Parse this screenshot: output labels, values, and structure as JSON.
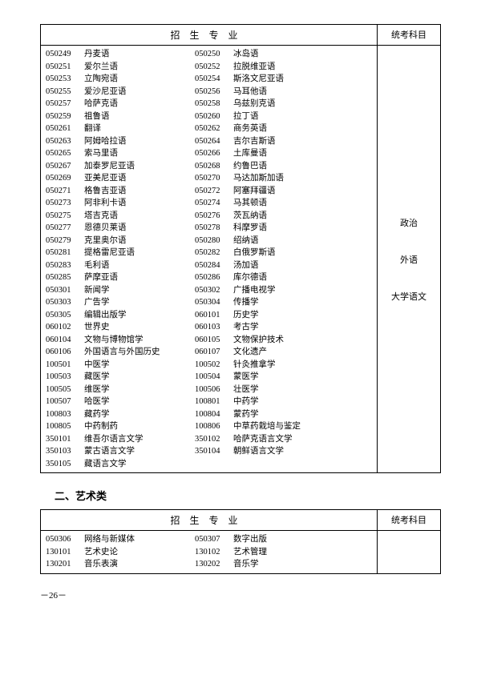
{
  "table1": {
    "header_left": "招生专业",
    "header_right": "统考科目",
    "rows": [
      {
        "c1": "050249",
        "n1": "丹麦语",
        "c2": "050250",
        "n2": "冰岛语"
      },
      {
        "c1": "050251",
        "n1": "爱尔兰语",
        "c2": "050252",
        "n2": "拉脱维亚语"
      },
      {
        "c1": "050253",
        "n1": "立陶宛语",
        "c2": "050254",
        "n2": "斯洛文尼亚语"
      },
      {
        "c1": "050255",
        "n1": "爱沙尼亚语",
        "c2": "050256",
        "n2": "马耳他语"
      },
      {
        "c1": "050257",
        "n1": "哈萨克语",
        "c2": "050258",
        "n2": "乌兹别克语"
      },
      {
        "c1": "050259",
        "n1": "祖鲁语",
        "c2": "050260",
        "n2": "拉丁语"
      },
      {
        "c1": "050261",
        "n1": "翻译",
        "c2": "050262",
        "n2": "商务英语"
      },
      {
        "c1": "050263",
        "n1": "阿姆哈拉语",
        "c2": "050264",
        "n2": "吉尔吉斯语"
      },
      {
        "c1": "050265",
        "n1": "索马里语",
        "c2": "050266",
        "n2": "土库曼语"
      },
      {
        "c1": "050267",
        "n1": "加泰罗尼亚语",
        "c2": "050268",
        "n2": "约鲁巴语"
      },
      {
        "c1": "050269",
        "n1": "亚美尼亚语",
        "c2": "050270",
        "n2": "马达加斯加语"
      },
      {
        "c1": "050271",
        "n1": "格鲁吉亚语",
        "c2": "050272",
        "n2": "阿塞拜疆语"
      },
      {
        "c1": "050273",
        "n1": "阿非利卡语",
        "c2": "050274",
        "n2": "马其顿语"
      },
      {
        "c1": "050275",
        "n1": "塔吉克语",
        "c2": "050276",
        "n2": "茨瓦纳语"
      },
      {
        "c1": "050277",
        "n1": "恩德贝莱语",
        "c2": "050278",
        "n2": "科摩罗语"
      },
      {
        "c1": "050279",
        "n1": "克里奥尔语",
        "c2": "050280",
        "n2": "绍纳语"
      },
      {
        "c1": "050281",
        "n1": "提格雷尼亚语",
        "c2": "050282",
        "n2": "白俄罗斯语"
      },
      {
        "c1": "050283",
        "n1": "毛利语",
        "c2": "050284",
        "n2": "汤加语"
      },
      {
        "c1": "050285",
        "n1": "萨摩亚语",
        "c2": "050286",
        "n2": "库尔德语"
      },
      {
        "c1": "050301",
        "n1": "新闻学",
        "c2": "050302",
        "n2": "广播电视学"
      },
      {
        "c1": "050303",
        "n1": "广告学",
        "c2": "050304",
        "n2": "传播学"
      },
      {
        "c1": "050305",
        "n1": "编辑出版学",
        "c2": "060101",
        "n2": "历史学"
      },
      {
        "c1": "060102",
        "n1": "世界史",
        "c2": "060103",
        "n2": "考古学"
      },
      {
        "c1": "060104",
        "n1": "文物与博物馆学",
        "c2": "060105",
        "n2": "文物保护技术"
      },
      {
        "c1": "060106",
        "n1": "外国语言与外国历史",
        "c2": "060107",
        "n2": "文化遗产"
      },
      {
        "c1": "100501",
        "n1": "中医学",
        "c2": "100502",
        "n2": "针灸推拿学"
      },
      {
        "c1": "100503",
        "n1": "藏医学",
        "c2": "100504",
        "n2": "蒙医学"
      },
      {
        "c1": "100505",
        "n1": "维医学",
        "c2": "100506",
        "n2": "壮医学"
      },
      {
        "c1": "100507",
        "n1": "哈医学",
        "c2": "100801",
        "n2": "中药学"
      },
      {
        "c1": "100803",
        "n1": "藏药学",
        "c2": "100804",
        "n2": "蒙药学"
      },
      {
        "c1": "100805",
        "n1": "中药制药",
        "c2": "100806",
        "n2": "中草药栽培与鉴定"
      },
      {
        "c1": "350101",
        "n1": "维吾尔语言文学",
        "c2": "350102",
        "n2": "哈萨克语言文学"
      },
      {
        "c1": "350103",
        "n1": "蒙古语言文学",
        "c2": "350104",
        "n2": "朝鲜语言文学"
      },
      {
        "c1": "350105",
        "n1": "藏语言文学",
        "c2": "",
        "n2": ""
      }
    ],
    "subjects": [
      "政治",
      "外语",
      "大学语文"
    ]
  },
  "section2_title": "二、艺术类",
  "table2": {
    "header_left": "招生专业",
    "header_right": "统考科目",
    "rows": [
      {
        "c1": "050306",
        "n1": "网络与新媒体",
        "c2": "050307",
        "n2": "数字出版"
      },
      {
        "c1": "130101",
        "n1": "艺术史论",
        "c2": "130102",
        "n2": "艺术管理"
      },
      {
        "c1": "130201",
        "n1": "音乐表演",
        "c2": "130202",
        "n2": "音乐学"
      }
    ]
  },
  "page_num": "－26－"
}
